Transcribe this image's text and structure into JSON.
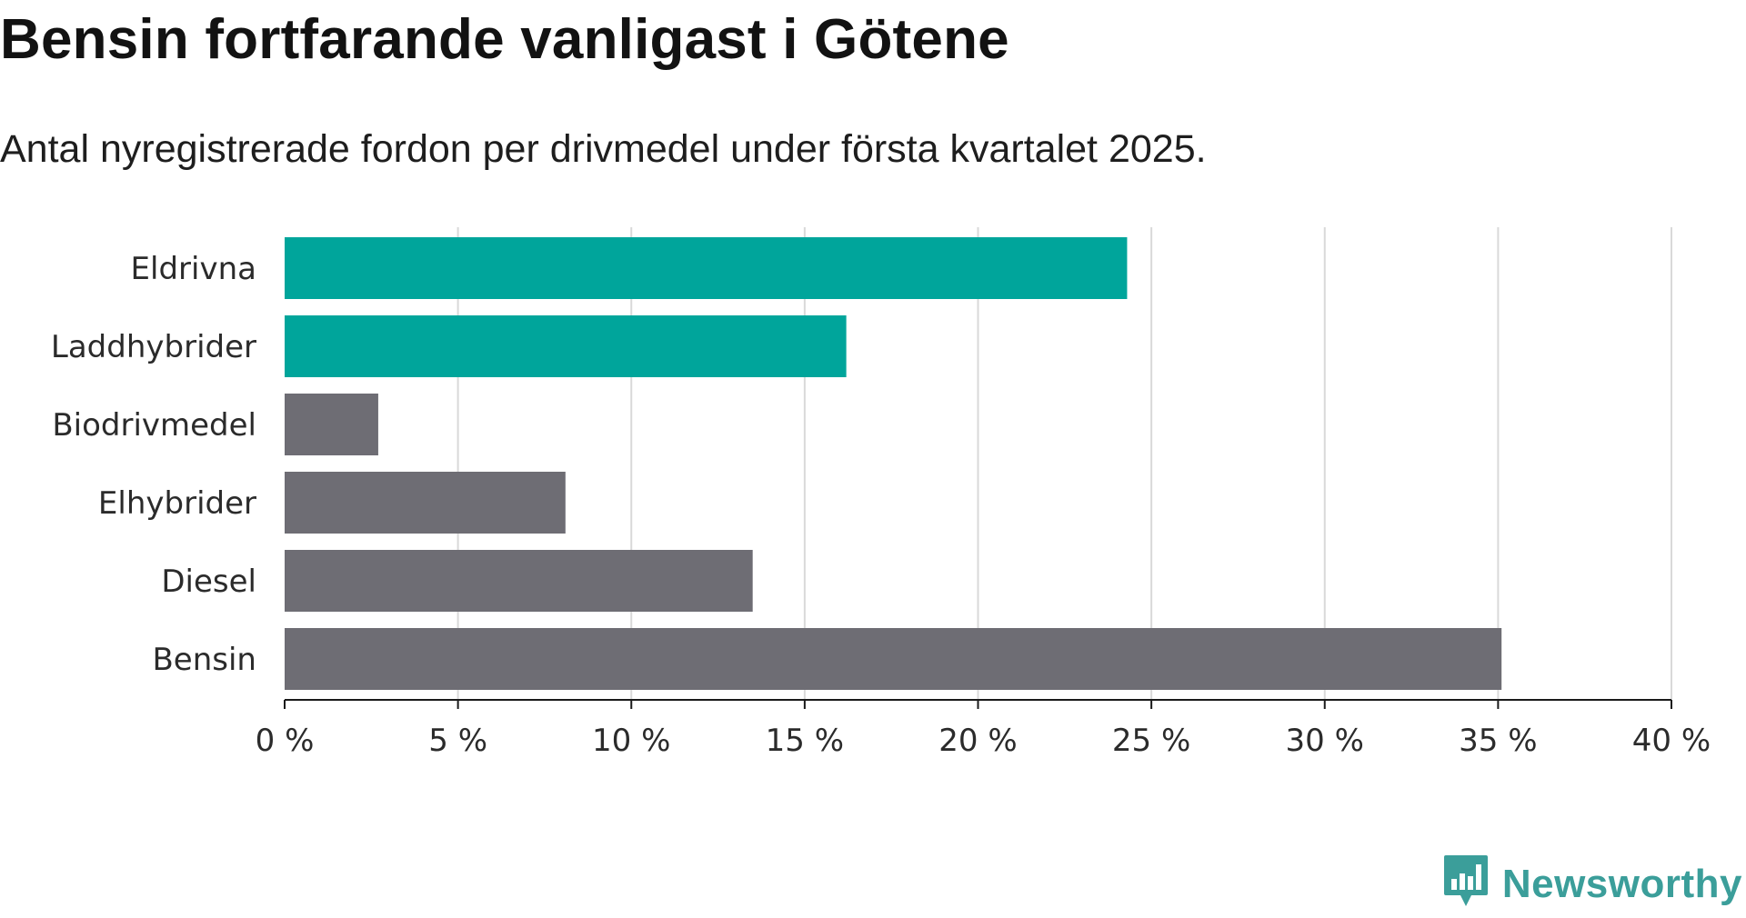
{
  "header": {
    "title": "Bensin fortfarande vanligast i Götene",
    "subtitle": "Antal nyregistrerade fordon per drivmedel under första kvartalet 2025."
  },
  "chart_data": {
    "type": "bar",
    "orientation": "horizontal",
    "categories": [
      "Eldrivna",
      "Laddhybrider",
      "Biodrivmedel",
      "Elhybrider",
      "Diesel",
      "Bensin"
    ],
    "values": [
      24.3,
      16.2,
      2.7,
      8.1,
      13.5,
      35.1
    ],
    "bar_colors": [
      "#00a59b",
      "#00a59b",
      "#6e6d74",
      "#6e6d74",
      "#6e6d74",
      "#6e6d74"
    ],
    "xlim": [
      0,
      40
    ],
    "xticks": [
      0,
      5,
      10,
      15,
      20,
      25,
      30,
      35,
      40
    ],
    "xtick_labels": [
      "0 %",
      "5 %",
      "10 %",
      "15 %",
      "20 %",
      "25 %",
      "30 %",
      "35 %",
      "40 %"
    ],
    "grid": "vertical",
    "xlabel": "",
    "ylabel": ""
  },
  "colors": {
    "accent": "#00a59b",
    "neutral_bar": "#6e6d74",
    "grid": "#d9d9d9",
    "brand": "#3b9e9a"
  },
  "branding": {
    "logo_icon": "newsworthy-chart-bubble-icon",
    "name": "Newsworthy"
  }
}
